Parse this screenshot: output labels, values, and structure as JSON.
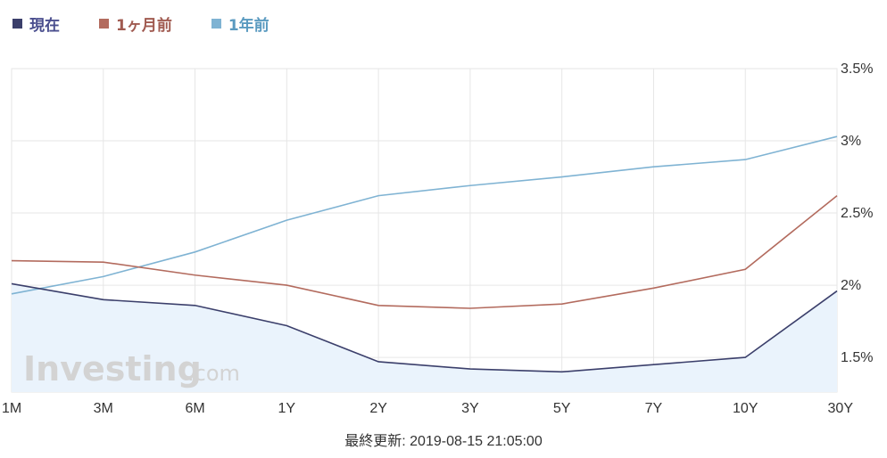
{
  "legend": {
    "items": [
      {
        "label": "現在",
        "color": "#3b3f6b",
        "text_color": "#4a4e8e"
      },
      {
        "label": "1ヶ月前",
        "color": "#b36b5e",
        "text_color": "#a05a50"
      },
      {
        "label": "1年前",
        "color": "#7fb3d3",
        "text_color": "#5a9ac0"
      }
    ]
  },
  "watermark": {
    "brand": "Investing",
    "suffix": ".com"
  },
  "footer": {
    "last_updated": "最終更新: 2019-08-15 21:05:00"
  },
  "chart_data": {
    "type": "line",
    "categories": [
      "1M",
      "3M",
      "6M",
      "1Y",
      "2Y",
      "3Y",
      "5Y",
      "7Y",
      "10Y",
      "30Y"
    ],
    "yticks": [
      "1.5%",
      "2%",
      "2.5%",
      "3%",
      "3.5%"
    ],
    "ylim": [
      1.26,
      3.5
    ],
    "grid": true,
    "legend_position": "top-left",
    "series": [
      {
        "name": "現在",
        "color": "#3b3f6b",
        "fill": "#eaf3fc",
        "values": [
          2.01,
          1.9,
          1.86,
          1.72,
          1.47,
          1.42,
          1.4,
          1.45,
          1.5,
          1.96
        ]
      },
      {
        "name": "1ヶ月前",
        "color": "#b36b5e",
        "values": [
          2.17,
          2.16,
          2.07,
          2.0,
          1.86,
          1.84,
          1.87,
          1.98,
          2.11,
          2.62
        ]
      },
      {
        "name": "1年前",
        "color": "#7fb3d3",
        "values": [
          1.94,
          2.06,
          2.23,
          2.45,
          2.62,
          2.69,
          2.75,
          2.82,
          2.87,
          3.03
        ]
      }
    ]
  }
}
